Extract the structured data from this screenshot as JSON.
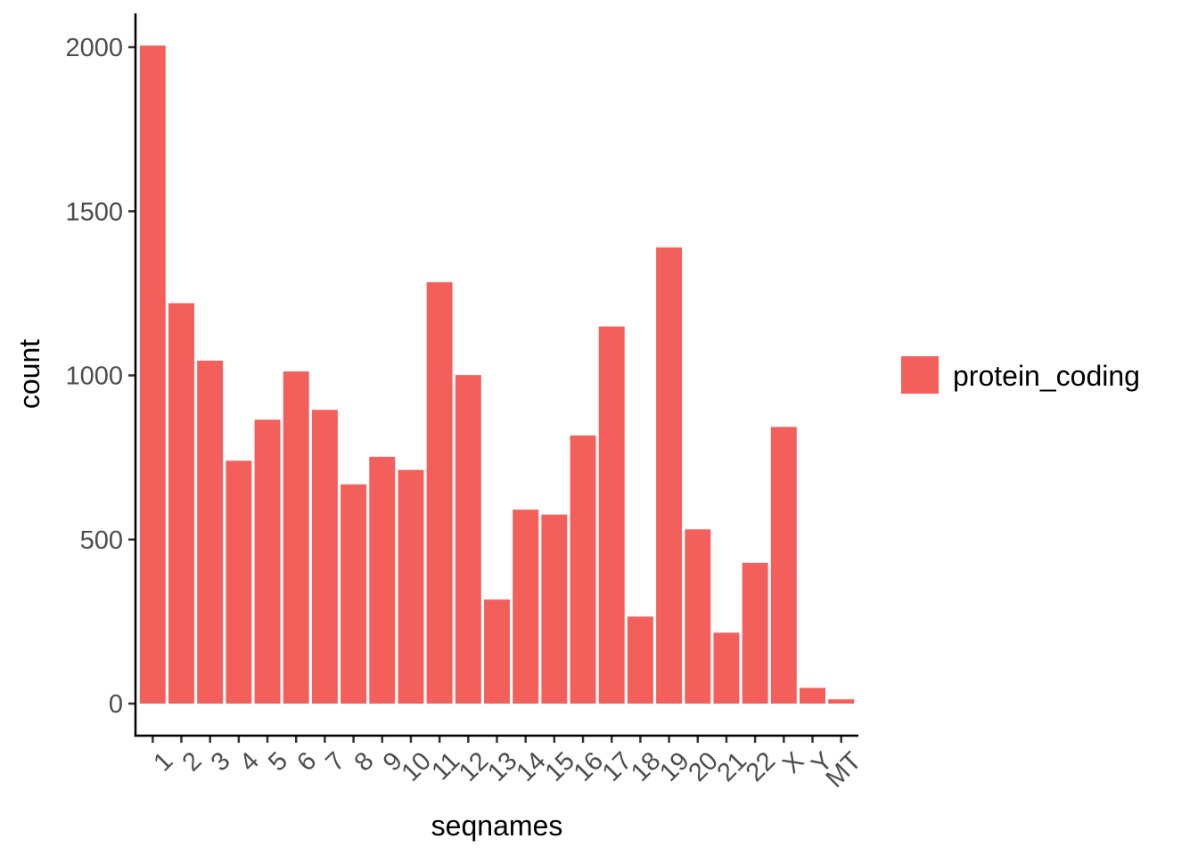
{
  "chart_data": {
    "type": "bar",
    "categories": [
      "1",
      "2",
      "3",
      "4",
      "5",
      "6",
      "7",
      "8",
      "9",
      "10",
      "11",
      "12",
      "13",
      "14",
      "15",
      "16",
      "17",
      "18",
      "19",
      "20",
      "21",
      "22",
      "X",
      "Y",
      "MT"
    ],
    "series": [
      {
        "name": "protein_coding",
        "color": "#f35f5b",
        "values": [
          2005,
          1220,
          1045,
          740,
          865,
          1012,
          895,
          668,
          752,
          712,
          1284,
          1001,
          317,
          591,
          576,
          817,
          1149,
          265,
          1390,
          531,
          216,
          429,
          843,
          48,
          13
        ]
      }
    ],
    "title": "",
    "xlabel": "seqnames",
    "ylabel": "count",
    "ylim": [
      0,
      2000
    ],
    "yticks": [
      0,
      500,
      1000,
      1500,
      2000
    ],
    "ytick_labels": [
      "0",
      "500",
      "1000",
      "1500",
      "2000"
    ],
    "grid": false,
    "legend_placement": "right"
  }
}
